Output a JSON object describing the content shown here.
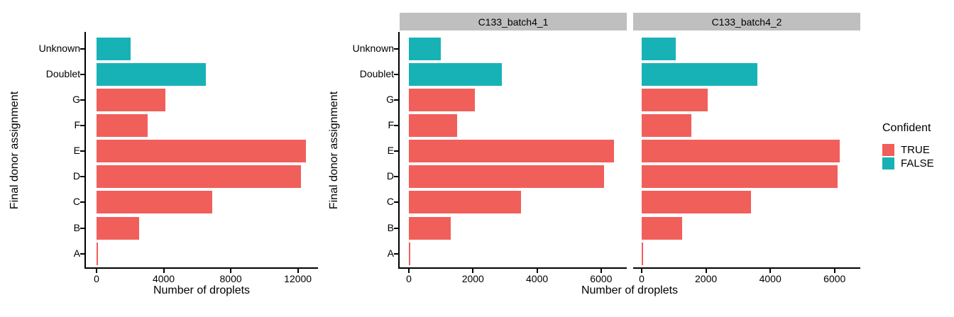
{
  "colors": {
    "confident_true": "#F15F5B",
    "confident_false": "#17B2B5",
    "strip_background": "#BFBFBF",
    "axis": "#000000",
    "background": "#FFFFFF"
  },
  "legend": {
    "title": "Confident",
    "items": [
      {
        "label": "TRUE",
        "color": "#F15F5B"
      },
      {
        "label": "FALSE",
        "color": "#17B2B5"
      }
    ]
  },
  "chart_data": [
    {
      "type": "bar",
      "orientation": "horizontal",
      "strip_label": "",
      "categories": [
        "Unknown",
        "Doublet",
        "G",
        "F",
        "E",
        "D",
        "C",
        "B",
        "A"
      ],
      "values": [
        2050,
        6500,
        4100,
        3050,
        12500,
        12200,
        6900,
        2550,
        100
      ],
      "confident": [
        false,
        false,
        true,
        true,
        true,
        true,
        true,
        true,
        true
      ],
      "xticks": [
        0,
        4000,
        8000,
        12000
      ],
      "xlim": [
        0,
        13200
      ],
      "xlabel": "Number of droplets",
      "ylabel": "Final donor assignment"
    },
    {
      "type": "bar",
      "orientation": "horizontal",
      "strip_label": "C133_batch4_1",
      "categories": [
        "Unknown",
        "Doublet",
        "G",
        "F",
        "E",
        "D",
        "C",
        "B",
        "A"
      ],
      "values": [
        1000,
        2900,
        2050,
        1500,
        6400,
        6100,
        3500,
        1300,
        50
      ],
      "confident": [
        false,
        false,
        true,
        true,
        true,
        true,
        true,
        true,
        true
      ],
      "xticks": [
        0,
        2000,
        4000,
        6000
      ],
      "xlim": [
        0,
        6800
      ],
      "xlabel": "Number of droplets",
      "ylabel": "Final donor assignment"
    },
    {
      "type": "bar",
      "orientation": "horizontal",
      "strip_label": "C133_batch4_2",
      "categories": [
        "Unknown",
        "Doublet",
        "G",
        "F",
        "E",
        "D",
        "C",
        "B",
        "A"
      ],
      "values": [
        1050,
        3600,
        2050,
        1550,
        6150,
        6100,
        3400,
        1250,
        50
      ],
      "confident": [
        false,
        false,
        true,
        true,
        true,
        true,
        true,
        true,
        true
      ],
      "xticks": [
        0,
        2000,
        4000,
        6000
      ],
      "xlim": [
        0,
        6800
      ],
      "xlabel": "",
      "ylabel": ""
    }
  ]
}
